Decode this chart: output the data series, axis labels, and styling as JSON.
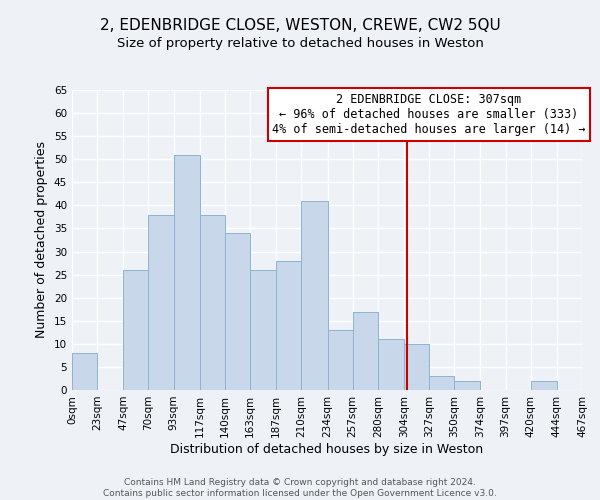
{
  "title": "2, EDENBRIDGE CLOSE, WESTON, CREWE, CW2 5QU",
  "subtitle": "Size of property relative to detached houses in Weston",
  "xlabel": "Distribution of detached houses by size in Weston",
  "ylabel": "Number of detached properties",
  "footer_line1": "Contains HM Land Registry data © Crown copyright and database right 2024.",
  "footer_line2": "Contains public sector information licensed under the Open Government Licence v3.0.",
  "bin_edges": [
    0,
    23,
    47,
    70,
    93,
    117,
    140,
    163,
    187,
    210,
    234,
    257,
    280,
    304,
    327,
    350,
    374,
    397,
    420,
    444,
    467
  ],
  "bin_labels": [
    "0sqm",
    "23sqm",
    "47sqm",
    "70sqm",
    "93sqm",
    "117sqm",
    "140sqm",
    "163sqm",
    "187sqm",
    "210sqm",
    "234sqm",
    "257sqm",
    "280sqm",
    "304sqm",
    "327sqm",
    "350sqm",
    "374sqm",
    "397sqm",
    "420sqm",
    "444sqm",
    "467sqm"
  ],
  "counts": [
    8,
    0,
    26,
    38,
    51,
    38,
    34,
    26,
    28,
    41,
    13,
    17,
    11,
    10,
    3,
    2,
    0,
    0,
    2,
    0
  ],
  "bar_facecolor": "#c8d8ea",
  "bar_edgecolor": "#8ab4d0",
  "vline_x": 307,
  "vline_color": "#cc0000",
  "annotation_title": "2 EDENBRIDGE CLOSE: 307sqm",
  "annotation_line1": "← 96% of detached houses are smaller (333)",
  "annotation_line2": "4% of semi-detached houses are larger (14) →",
  "annotation_box_edgecolor": "#cc0000",
  "ylim": [
    0,
    65
  ],
  "yticks": [
    0,
    5,
    10,
    15,
    20,
    25,
    30,
    35,
    40,
    45,
    50,
    55,
    60,
    65
  ],
  "background_color": "#eef2f7",
  "grid_color": "#ffffff",
  "title_fontsize": 11,
  "subtitle_fontsize": 9.5,
  "axis_label_fontsize": 9,
  "tick_fontsize": 7.5,
  "annotation_fontsize": 8.5,
  "footer_fontsize": 6.5
}
